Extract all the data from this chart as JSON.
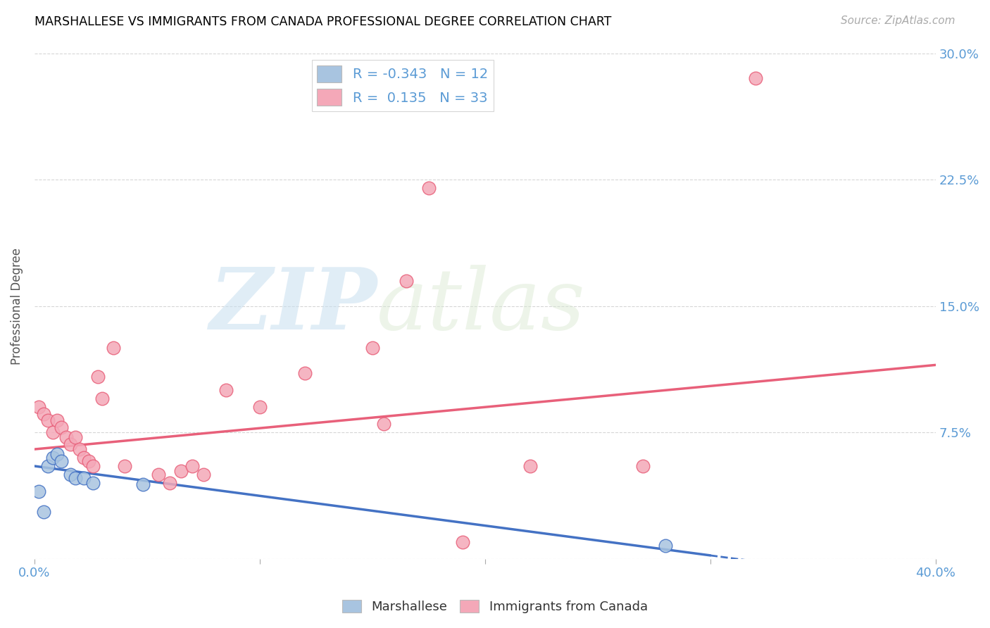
{
  "title": "MARSHALLESE VS IMMIGRANTS FROM CANADA PROFESSIONAL DEGREE CORRELATION CHART",
  "source": "Source: ZipAtlas.com",
  "ylabel": "Professional Degree",
  "xlim": [
    0.0,
    0.4
  ],
  "ylim": [
    0.0,
    0.3
  ],
  "xticks": [
    0.0,
    0.1,
    0.2,
    0.3,
    0.4
  ],
  "xtick_labels": [
    "0.0%",
    "",
    "",
    "",
    "40.0%"
  ],
  "ytick_labels_right": [
    "",
    "7.5%",
    "15.0%",
    "22.5%",
    "30.0%"
  ],
  "yticks": [
    0.0,
    0.075,
    0.15,
    0.225,
    0.3
  ],
  "legend_label1": "Marshallese",
  "legend_label2": "Immigrants from Canada",
  "r1": -0.343,
  "n1": 12,
  "r2": 0.135,
  "n2": 33,
  "color_marshallese": "#a8c4e0",
  "color_canada": "#f4a8b8",
  "color_marshallese_line": "#4472c4",
  "color_canada_line": "#e8607a",
  "color_axis_labels": "#5b9bd5",
  "watermark_zip": "ZIP",
  "watermark_atlas": "atlas",
  "marshallese_x": [
    0.002,
    0.004,
    0.006,
    0.008,
    0.01,
    0.012,
    0.016,
    0.018,
    0.022,
    0.026,
    0.048,
    0.28
  ],
  "marshallese_y": [
    0.04,
    0.028,
    0.055,
    0.06,
    0.062,
    0.058,
    0.05,
    0.048,
    0.048,
    0.045,
    0.044,
    0.008
  ],
  "canada_x": [
    0.002,
    0.004,
    0.006,
    0.008,
    0.01,
    0.012,
    0.014,
    0.016,
    0.018,
    0.02,
    0.022,
    0.024,
    0.026,
    0.028,
    0.03,
    0.035,
    0.04,
    0.055,
    0.06,
    0.065,
    0.07,
    0.075,
    0.085,
    0.1,
    0.12,
    0.15,
    0.155,
    0.165,
    0.175,
    0.19,
    0.22,
    0.27,
    0.32
  ],
  "canada_y": [
    0.09,
    0.086,
    0.082,
    0.075,
    0.082,
    0.078,
    0.072,
    0.068,
    0.072,
    0.065,
    0.06,
    0.058,
    0.055,
    0.108,
    0.095,
    0.125,
    0.055,
    0.05,
    0.045,
    0.052,
    0.055,
    0.05,
    0.1,
    0.09,
    0.11,
    0.125,
    0.08,
    0.165,
    0.22,
    0.01,
    0.055,
    0.055,
    0.285
  ],
  "trend_canada_x0": 0.0,
  "trend_canada_y0": 0.065,
  "trend_canada_x1": 0.4,
  "trend_canada_y1": 0.115,
  "trend_marsh_x0": 0.0,
  "trend_marsh_y0": 0.055,
  "trend_marsh_x1": 0.3,
  "trend_marsh_y1": 0.002,
  "trend_marsh_dash_x0": 0.3,
  "trend_marsh_dash_x1": 0.4
}
